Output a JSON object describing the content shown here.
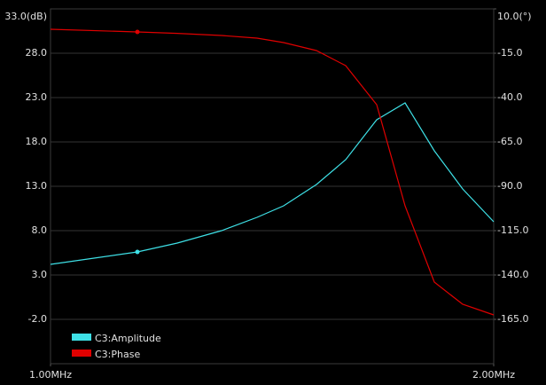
{
  "chart_data": {
    "type": "line",
    "x": [
      1.0,
      1.196,
      1.286,
      1.386,
      1.466,
      1.526,
      1.6,
      1.666,
      1.736,
      1.8,
      1.866,
      1.93,
      2.0
    ],
    "series": [
      {
        "name": "C3:Amplitude",
        "color": "#3ee0e6",
        "values": [
          4.2,
          5.6,
          6.6,
          8.0,
          9.5,
          10.8,
          13.2,
          16.0,
          20.5,
          22.4,
          17.0,
          12.7,
          9.0
        ]
      },
      {
        "name": "C3:Phase",
        "color": "#e00000",
        "axis": "y2",
        "values": [
          -1.5,
          -3.0,
          -3.8,
          -5.0,
          -6.5,
          -9.0,
          -13.5,
          -22.0,
          -44.0,
          -101.0,
          -144.0,
          -156.5,
          -162.5
        ]
      }
    ],
    "xlim": [
      1.0,
      2.0
    ],
    "xticks": [
      {
        "value": 1.0,
        "label": "1.00MHz"
      },
      {
        "value": 2.0,
        "label": "2.00MHz"
      }
    ],
    "ylim": [
      -7,
      33
    ],
    "yticks": [
      {
        "value": -2,
        "label": "-2.0"
      },
      {
        "value": 3,
        "label": "3.0"
      },
      {
        "value": 8,
        "label": "8.0"
      },
      {
        "value": 13,
        "label": "13.0"
      },
      {
        "value": 18,
        "label": "18.0"
      },
      {
        "value": 23,
        "label": "23.0"
      },
      {
        "value": 28,
        "label": "28.0"
      },
      {
        "value": 33,
        "label": "33.0(dB)"
      }
    ],
    "y2lim": [
      -190,
      10
    ],
    "y2ticks": [
      {
        "value": -165,
        "label": "-165.0"
      },
      {
        "value": -140,
        "label": "-140.0"
      },
      {
        "value": -115,
        "label": "-115.0"
      },
      {
        "value": -90,
        "label": "-90.0"
      },
      {
        "value": -65,
        "label": "-65.0"
      },
      {
        "value": -40,
        "label": "-40.0"
      },
      {
        "value": -15,
        "label": "-15.0"
      },
      {
        "value": 10,
        "label": "10.0(°)"
      }
    ],
    "grid": true,
    "legend": "lower left"
  }
}
